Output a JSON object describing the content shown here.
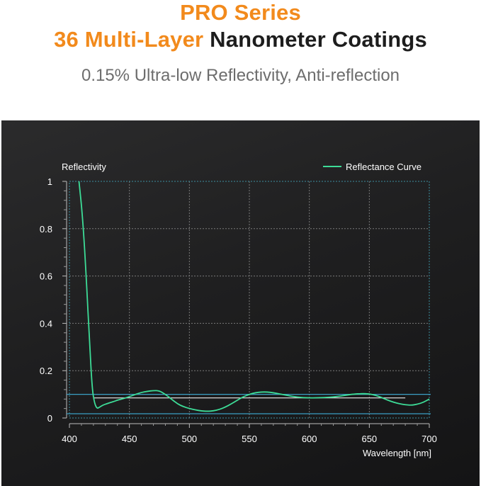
{
  "header": {
    "title_line1": "PRO Series",
    "title_line2_highlight": "36 Multi-Layer",
    "title_line2_rest": "Nanometer Coatings",
    "subtitle": "0.15% Ultra-low Reflectivity, Anti-reflection"
  },
  "colors": {
    "accent": "#f28a1c",
    "curve": "#3ddc97",
    "reference_line": "#3a9fc4"
  },
  "chart_data": {
    "type": "line",
    "ylabel": "Reflectivity",
    "xlabel": "Wavelength [nm]",
    "xlim": [
      400,
      700
    ],
    "ylim": [
      0,
      1
    ],
    "x_ticks": [
      400,
      450,
      500,
      550,
      600,
      650,
      700
    ],
    "y_ticks": [
      0,
      0.2,
      0.4,
      0.6,
      0.8,
      1
    ],
    "y_tick_labels": [
      "0",
      "0.2",
      "0.4",
      "0.6",
      "0.8",
      "1"
    ],
    "grid": true,
    "legend_position": "top-right",
    "series": [
      {
        "name": "Reflectance Curve",
        "x": [
          408,
          411,
          414,
          417,
          419,
          421,
          423,
          425,
          428,
          431,
          434,
          437,
          440,
          445,
          450,
          455,
          460,
          465,
          470,
          475,
          480,
          485,
          490,
          495,
          500,
          505,
          510,
          515,
          520,
          525,
          530,
          535,
          540,
          545,
          550,
          555,
          560,
          565,
          570,
          575,
          580,
          585,
          590,
          595,
          600,
          605,
          610,
          615,
          620,
          625,
          630,
          635,
          640,
          645,
          650,
          655,
          660,
          665,
          670,
          675,
          680,
          685,
          690,
          695,
          700
        ],
        "y": [
          1.0,
          0.85,
          0.6,
          0.3,
          0.12,
          0.06,
          0.04,
          0.045,
          0.055,
          0.06,
          0.065,
          0.07,
          0.075,
          0.082,
          0.09,
          0.1,
          0.108,
          0.113,
          0.116,
          0.115,
          0.1,
          0.08,
          0.06,
          0.048,
          0.04,
          0.034,
          0.03,
          0.028,
          0.03,
          0.036,
          0.046,
          0.06,
          0.075,
          0.09,
          0.1,
          0.107,
          0.11,
          0.11,
          0.107,
          0.102,
          0.097,
          0.092,
          0.088,
          0.086,
          0.085,
          0.085,
          0.086,
          0.087,
          0.089,
          0.092,
          0.096,
          0.1,
          0.102,
          0.103,
          0.102,
          0.096,
          0.087,
          0.076,
          0.067,
          0.06,
          0.056,
          0.054,
          0.058,
          0.066,
          0.08
        ]
      }
    ],
    "reference_levels": [
      0.1,
      0.085,
      0
    ]
  }
}
